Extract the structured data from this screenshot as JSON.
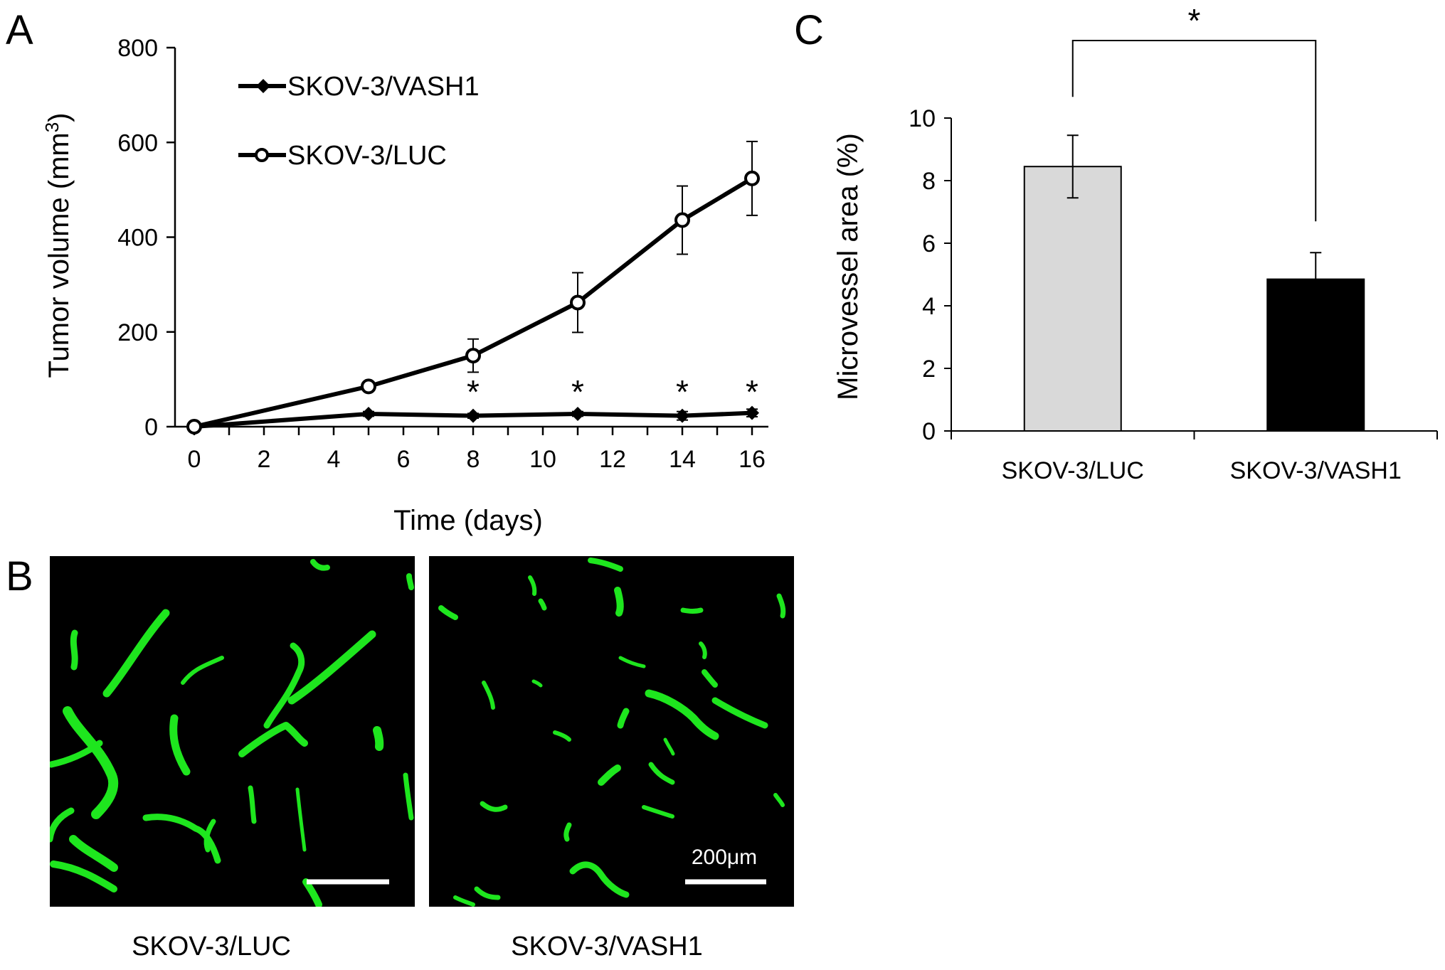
{
  "panels": {
    "A": "A",
    "B": "B",
    "C": "C"
  },
  "chart_data": [
    {
      "type": "line",
      "xlabel": "Time (days)",
      "ylabel": "Tumor volume (mm",
      "ylabel_sup": "3",
      "ylabel_close": ")",
      "xlim": [
        0,
        16
      ],
      "ylim": [
        0,
        800
      ],
      "xticks": [
        0,
        2,
        4,
        6,
        8,
        10,
        12,
        14,
        16
      ],
      "yticks": [
        0,
        200,
        400,
        600,
        800
      ],
      "legend_position": "top-left",
      "series": [
        {
          "name": "SKOV-3/VASH1",
          "marker": "filled-diamond",
          "x": [
            0,
            5,
            8,
            11,
            14,
            16
          ],
          "values": [
            0,
            27,
            23,
            27,
            23,
            29
          ],
          "errors": [
            0,
            5,
            5,
            5,
            9,
            8
          ]
        },
        {
          "name": "SKOV-3/LUC",
          "marker": "open-circle",
          "x": [
            0,
            5,
            8,
            11,
            14,
            16
          ],
          "values": [
            0,
            85,
            150,
            262,
            436,
            524
          ],
          "errors": [
            0,
            10,
            35,
            63,
            72,
            78
          ]
        }
      ],
      "significance": {
        "symbol": "*",
        "x": [
          8,
          11,
          14,
          16
        ]
      }
    },
    {
      "type": "bar",
      "categories": [
        "SKOV-3/LUC",
        "SKOV-3/VASH1"
      ],
      "values": [
        8.45,
        4.85
      ],
      "errors": [
        1.0,
        0.85
      ],
      "colors": [
        "#d9d9d9",
        "#000000"
      ],
      "ylabel": "Microvessel area (%)",
      "ylim": [
        0,
        10
      ],
      "yticks": [
        0,
        2,
        4,
        6,
        8,
        10
      ],
      "significance": {
        "symbol": "*"
      }
    }
  ],
  "micrographs": {
    "captions": [
      "SKOV-3/LUC",
      "SKOV-3/VASH1"
    ],
    "scale_bar_label": "200μm",
    "stain_color": "#1ee61e"
  }
}
